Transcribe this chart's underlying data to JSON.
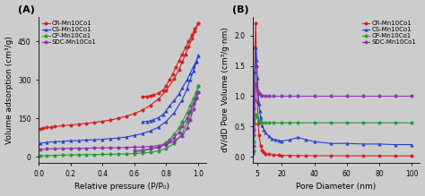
{
  "fig_width": 4.74,
  "fig_height": 2.19,
  "dpi": 100,
  "bg_color": "#cccccc",
  "panel_A": {
    "label": "(A)",
    "xlabel": "Relative pressure (P/P₀)",
    "ylabel": "Volume adsorption (cm³/g)",
    "xlim": [
      0.0,
      1.05
    ],
    "series_order": [
      "CR",
      "CS",
      "CP",
      "SDC"
    ],
    "series": {
      "CR": {
        "color": "#d42020",
        "marker": "o",
        "label": "CR-Mn10Co1",
        "ads_x": [
          0.01,
          0.03,
          0.05,
          0.08,
          0.1,
          0.15,
          0.2,
          0.25,
          0.3,
          0.35,
          0.4,
          0.45,
          0.5,
          0.55,
          0.6,
          0.65,
          0.7,
          0.75,
          0.8,
          0.85,
          0.88,
          0.9,
          0.92,
          0.94,
          0.96,
          0.98,
          1.0
        ],
        "ads_y": [
          108,
          111,
          114,
          116,
          118,
          121,
          124,
          127,
          130,
          134,
          138,
          143,
          150,
          158,
          168,
          182,
          200,
          225,
          258,
          305,
          340,
          370,
          400,
          430,
          460,
          490,
          520
        ],
        "des_x": [
          1.0,
          0.98,
          0.96,
          0.94,
          0.92,
          0.9,
          0.88,
          0.86,
          0.84,
          0.82,
          0.8,
          0.78,
          0.75,
          0.72,
          0.7,
          0.68,
          0.65
        ],
        "des_y": [
          520,
          500,
          475,
          450,
          425,
          400,
          375,
          350,
          322,
          300,
          278,
          260,
          248,
          240,
          238,
          236,
          235
        ]
      },
      "CS": {
        "color": "#2040d0",
        "marker": "^",
        "label": "CS-Mn10Co1",
        "ads_x": [
          0.01,
          0.05,
          0.1,
          0.15,
          0.2,
          0.25,
          0.3,
          0.35,
          0.4,
          0.45,
          0.5,
          0.55,
          0.6,
          0.65,
          0.7,
          0.75,
          0.8,
          0.85,
          0.9,
          0.93,
          0.95,
          0.97,
          0.99,
          1.0
        ],
        "ads_y": [
          52,
          56,
          58,
          60,
          62,
          63,
          65,
          66,
          68,
          70,
          73,
          77,
          83,
          90,
          100,
          115,
          138,
          172,
          222,
          265,
          300,
          335,
          370,
          395
        ],
        "des_x": [
          1.0,
          0.99,
          0.97,
          0.95,
          0.93,
          0.9,
          0.88,
          0.85,
          0.82,
          0.8,
          0.78,
          0.75,
          0.72,
          0.7,
          0.68,
          0.65
        ],
        "des_y": [
          395,
          375,
          352,
          325,
          300,
          268,
          245,
          220,
          198,
          180,
          165,
          152,
          145,
          140,
          138,
          136
        ]
      },
      "CP": {
        "color": "#20a030",
        "marker": "o",
        "label": "CP-Mn10Co1",
        "ads_x": [
          0.01,
          0.05,
          0.1,
          0.15,
          0.2,
          0.25,
          0.3,
          0.35,
          0.4,
          0.45,
          0.5,
          0.55,
          0.6,
          0.65,
          0.7,
          0.75,
          0.8,
          0.85,
          0.9,
          0.93,
          0.95,
          0.97,
          0.99,
          1.0
        ],
        "ads_y": [
          3,
          4,
          5,
          6,
          7,
          7,
          8,
          8,
          9,
          9,
          10,
          11,
          12,
          14,
          17,
          22,
          32,
          52,
          92,
          135,
          170,
          210,
          250,
          275
        ],
        "des_x": [
          1.0,
          0.99,
          0.97,
          0.95,
          0.93,
          0.9,
          0.88,
          0.85,
          0.82,
          0.8,
          0.75,
          0.7,
          0.65,
          0.6
        ],
        "des_y": [
          275,
          252,
          228,
          200,
          170,
          138,
          112,
          88,
          68,
          55,
          40,
          30,
          22,
          18
        ]
      },
      "SDC": {
        "color": "#9030b0",
        "marker": "o",
        "label": "SDC-Mn10Co1",
        "ads_x": [
          0.01,
          0.05,
          0.1,
          0.15,
          0.2,
          0.25,
          0.3,
          0.35,
          0.4,
          0.45,
          0.5,
          0.55,
          0.6,
          0.65,
          0.7,
          0.75,
          0.8,
          0.85,
          0.9,
          0.93,
          0.95,
          0.97,
          0.99,
          1.0
        ],
        "ads_y": [
          28,
          30,
          31,
          32,
          32,
          33,
          33,
          34,
          34,
          35,
          35,
          36,
          37,
          38,
          40,
          43,
          49,
          60,
          82,
          112,
          145,
          185,
          228,
          252
        ],
        "des_x": [
          1.0,
          0.99,
          0.97,
          0.95,
          0.93,
          0.9,
          0.88,
          0.85,
          0.82,
          0.8,
          0.75,
          0.7,
          0.65,
          0.6
        ],
        "des_y": [
          252,
          230,
          205,
          178,
          150,
          120,
          96,
          75,
          58,
          47,
          36,
          30,
          26,
          24
        ]
      }
    }
  },
  "panel_B": {
    "label": "(B)",
    "xlabel": "Pore Diameter (nm)",
    "ylabel": "dV/dD Pore Volume (cm³/g·nm)",
    "xlim": [
      2,
      105
    ],
    "xticks": [
      5,
      20,
      40,
      60,
      80,
      100
    ],
    "series_order": [
      "CR",
      "CS",
      "CP",
      "SDC"
    ],
    "series": {
      "CR": {
        "color": "#d42020",
        "marker": "o",
        "label": "CR-Mn10Co1",
        "x": [
          2.0,
          2.5,
          3.0,
          3.5,
          4.0,
          4.5,
          5.0,
          5.5,
          6.0,
          7.0,
          8.0,
          9.0,
          10.0,
          12.0,
          15.0,
          18.0,
          20.0,
          25.0,
          30.0,
          35.0,
          40.0,
          50.0,
          60.0,
          70.0,
          80.0,
          90.0,
          100.0
        ],
        "y": [
          0.18,
          0.35,
          0.8,
          1.8,
          2.2,
          1.5,
          0.9,
          0.55,
          0.35,
          0.18,
          0.1,
          0.07,
          0.05,
          0.04,
          0.03,
          0.025,
          0.022,
          0.02,
          0.018,
          0.018,
          0.017,
          0.016,
          0.015,
          0.015,
          0.015,
          0.014,
          0.014
        ]
      },
      "CS": {
        "color": "#2040d0",
        "marker": "^",
        "label": "CS-Mn10Co1",
        "x": [
          2.0,
          2.5,
          3.0,
          3.5,
          4.0,
          4.5,
          5.0,
          5.5,
          6.0,
          6.5,
          7.0,
          7.5,
          8.0,
          9.0,
          10.0,
          12.0,
          14.0,
          16.0,
          18.0,
          20.0,
          25.0,
          30.0,
          35.0,
          40.0,
          50.0,
          60.0,
          70.0,
          80.0,
          90.0,
          100.0
        ],
        "y": [
          0.1,
          0.25,
          0.65,
          1.4,
          1.8,
          1.6,
          1.3,
          1.05,
          0.88,
          0.75,
          0.65,
          0.58,
          0.52,
          0.44,
          0.4,
          0.34,
          0.3,
          0.28,
          0.27,
          0.26,
          0.28,
          0.32,
          0.28,
          0.25,
          0.22,
          0.22,
          0.21,
          0.21,
          0.2,
          0.2
        ]
      },
      "CP": {
        "color": "#20a030",
        "marker": "o",
        "label": "CP-Mn10Co1",
        "x": [
          2.0,
          2.5,
          3.0,
          3.5,
          4.0,
          5.0,
          6.0,
          7.0,
          8.0,
          10.0,
          12.0,
          15.0,
          20.0,
          25.0,
          30.0,
          40.0,
          50.0,
          60.0,
          70.0,
          80.0,
          90.0,
          100.0
        ],
        "y": [
          0.05,
          0.1,
          0.25,
          0.55,
          0.7,
          0.65,
          0.6,
          0.58,
          0.57,
          0.56,
          0.56,
          0.56,
          0.56,
          0.56,
          0.56,
          0.56,
          0.56,
          0.56,
          0.56,
          0.56,
          0.56,
          0.56
        ]
      },
      "SDC": {
        "color": "#9030b0",
        "marker": "o",
        "label": "SDC-Mn10Co1",
        "x": [
          2.0,
          2.5,
          3.0,
          3.5,
          4.0,
          5.0,
          6.0,
          7.0,
          8.0,
          10.0,
          12.0,
          15.0,
          20.0,
          25.0,
          30.0,
          40.0,
          50.0,
          60.0,
          70.0,
          80.0,
          90.0,
          100.0
        ],
        "y": [
          0.08,
          0.18,
          0.45,
          0.95,
          1.2,
          1.1,
          1.05,
          1.02,
          1.01,
          1.0,
          1.0,
          1.0,
          1.0,
          1.0,
          1.0,
          1.0,
          1.0,
          1.0,
          1.0,
          1.0,
          1.0,
          1.0
        ]
      }
    }
  }
}
